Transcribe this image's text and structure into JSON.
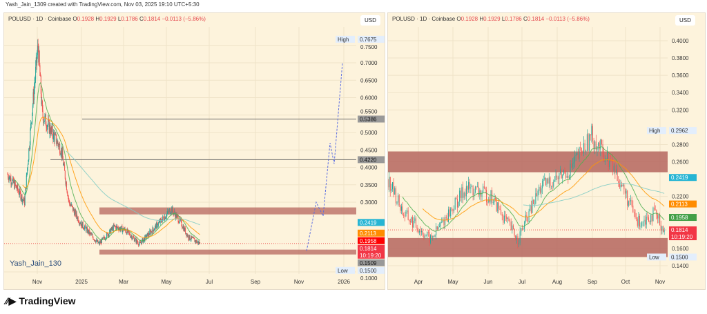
{
  "caption": "Yash_Jain_1309 created with TradingView.com, Nov 03, 2025 19:10 UTC+5:30",
  "legend": {
    "symbol": "POLUSD · 1D · Coinbase",
    "o_label": "O",
    "o": "0.1928",
    "h_label": "H",
    "h": "0.1929",
    "l_label": "L",
    "l": "0.1786",
    "c_label": "C",
    "c": "0.1814",
    "change": "−0.0113 (−5.86%)"
  },
  "currency": "USD",
  "watermark": "Yash_Jain_130",
  "brand": "TradingView",
  "colors": {
    "up": "#26a69a",
    "down": "#ef5350",
    "zone": "#b5655e",
    "ema_fast": "#4caf50",
    "ema_mid": "#ff9800",
    "ema_slow": "#80cbc4",
    "bg": "#fdf3dc"
  },
  "chart_data": [
    {
      "type": "candlestick",
      "yticks": [
        "0.7500",
        "0.7000",
        "0.6500",
        "0.6000",
        "0.5500",
        "0.5000",
        "0.4500",
        "0.4000",
        "0.3500",
        "0.3000",
        "0.1000"
      ],
      "ytick_values": [
        0.75,
        0.7,
        0.65,
        0.6,
        0.55,
        0.5,
        0.45,
        0.4,
        0.35,
        0.3,
        0.1
      ],
      "xticks": [
        "Nov",
        "2025",
        "Mar",
        "May",
        "Jul",
        "Sep",
        "Nov",
        "2026"
      ],
      "price_path": [
        [
          "2024-10-01",
          0.38
        ],
        [
          "2024-10-20",
          0.34
        ],
        [
          "2024-11-05",
          0.3
        ],
        [
          "2024-11-20",
          0.55
        ],
        [
          "2024-12-03",
          0.75
        ],
        [
          "2024-12-12",
          0.55
        ],
        [
          "2025-01-01",
          0.5
        ],
        [
          "2025-01-20",
          0.45
        ],
        [
          "2025-02-05",
          0.3
        ],
        [
          "2025-03-01",
          0.24
        ],
        [
          "2025-04-08",
          0.18
        ],
        [
          "2025-05-10",
          0.23
        ],
        [
          "2025-06-01",
          0.22
        ],
        [
          "2025-07-01",
          0.18
        ],
        [
          "2025-08-10",
          0.24
        ],
        [
          "2025-09-05",
          0.28
        ],
        [
          "2025-09-25",
          0.24
        ],
        [
          "2025-10-10",
          0.2
        ],
        [
          "2025-11-03",
          0.1814
        ]
      ],
      "labels": [
        {
          "text": "High",
          "value": "0.7675"
        },
        {
          "text": "",
          "value": "0.5386"
        },
        {
          "text": "",
          "value": "0.4220"
        },
        {
          "text": "",
          "value": "0.2419"
        },
        {
          "text": "",
          "value": "0.2113"
        },
        {
          "text": "",
          "value": "0.1958"
        },
        {
          "text": "",
          "value": "0.1814",
          "sub": "10:19:20"
        },
        {
          "text": "",
          "value": "0.1509"
        },
        {
          "text": "Low",
          "value": "0.1500"
        }
      ],
      "zones": [
        [
          0.265,
          0.285
        ],
        [
          0.15,
          0.164
        ]
      ],
      "hlines": [
        0.5386,
        0.422
      ],
      "projection": [
        0.16,
        0.7
      ]
    },
    {
      "type": "candlestick",
      "yticks": [
        "0.4000",
        "0.3800",
        "0.3600",
        "0.3400",
        "0.3200",
        "0.2800",
        "0.2600",
        "0.2200",
        "0.1600",
        "0.1400"
      ],
      "ytick_values": [
        0.4,
        0.38,
        0.36,
        0.34,
        0.32,
        0.28,
        0.26,
        0.22,
        0.16,
        0.14
      ],
      "xticks": [
        "Apr",
        "May",
        "Jun",
        "Jul",
        "Aug",
        "Sep",
        "Oct",
        "Nov"
      ],
      "price_path": [
        [
          "2025-03-01",
          0.24
        ],
        [
          "2025-03-15",
          0.2
        ],
        [
          "2025-04-08",
          0.17
        ],
        [
          "2025-05-10",
          0.23
        ],
        [
          "2025-06-01",
          0.22
        ],
        [
          "2025-06-25",
          0.17
        ],
        [
          "2025-07-15",
          0.23
        ],
        [
          "2025-08-10",
          0.25
        ],
        [
          "2025-08-30",
          0.29
        ],
        [
          "2025-09-20",
          0.25
        ],
        [
          "2025-10-10",
          0.19
        ],
        [
          "2025-10-25",
          0.2
        ],
        [
          "2025-11-03",
          0.1814
        ]
      ],
      "labels": [
        {
          "text": "High",
          "value": "0.2962"
        },
        {
          "text": "",
          "value": "0.2419"
        },
        {
          "text": "",
          "value": "0.2113"
        },
        {
          "text": "",
          "value": "0.1958"
        },
        {
          "text": "",
          "value": "0.1814",
          "sub": "10:19:20"
        },
        {
          "text": "Low",
          "value": "0.1500"
        }
      ],
      "zones": [
        [
          0.248,
          0.272
        ],
        [
          0.15,
          0.172
        ]
      ]
    }
  ]
}
